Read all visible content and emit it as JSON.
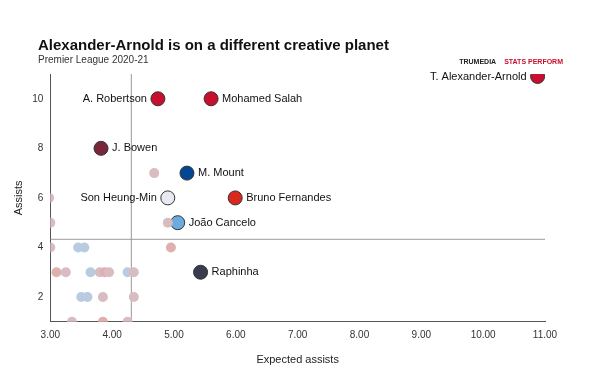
{
  "chart_data": {
    "type": "scatter",
    "title": "Alexander-Arnold is on a different creative planet",
    "subtitle": "Premier League 2020-21",
    "x_label": "Expected assists",
    "y_label": "Assists",
    "logo_text": [
      "TRUMEDIA",
      "STATS PERFORM"
    ],
    "x": [
      10.88,
      4.74,
      5.6,
      3.82,
      5.21,
      4.9,
      5.99,
      5.06,
      5.43,
      2.98,
      3.0,
      3.0,
      3.45,
      3.55,
      4.68,
      4.95,
      3.1,
      3.25,
      3.65,
      3.8,
      3.88,
      3.95,
      4.25,
      4.35,
      3.5,
      3.6,
      3.85,
      4.35,
      3.35,
      3.85,
      4.25,
      4.9
    ],
    "values": [
      10.9,
      10,
      10,
      8,
      7,
      6,
      6,
      5,
      3,
      6,
      5,
      4,
      4,
      4,
      7,
      4,
      3,
      3,
      3,
      3,
      3,
      3,
      3,
      3,
      2,
      2,
      2,
      2,
      1,
      1,
      1,
      5
    ],
    "point_labels": [
      "T. Alexander-Arnold",
      "A. Robertson",
      "Mohamed Salah",
      "J. Bowen",
      "M. Mount",
      "Son Heung-Min",
      "Bruno Fernandes",
      "João Cancelo",
      "Raphinha",
      null,
      null,
      null,
      null,
      null,
      null,
      null,
      null,
      null,
      null,
      null,
      null,
      null,
      null,
      null,
      null,
      null,
      null,
      null,
      null,
      null,
      null,
      null
    ],
    "colors": [
      "#c8102e",
      "#c8102e",
      "#c8102e",
      "#7a263a",
      "#034694",
      "#e8e8f0",
      "#da291c",
      "#6cabdd",
      "#3b3b4f",
      "#d9bcc2",
      "#d9bcc2",
      "#d9bcc2",
      "#b9cbe0",
      "#b9cbe0",
      "#d9bcc2",
      "#e0b0b0",
      "#e0b0b0",
      "#d9bcc2",
      "#b9cbe0",
      "#d9bcc2",
      "#e0b0b0",
      "#d9bcc2",
      "#b9cbe0",
      "#d9bcc2",
      "#b9cbe0",
      "#b9cbe0",
      "#d9bcc2",
      "#d9bcc2",
      "#d9bcc2",
      "#e0b0b0",
      "#d9bcc2",
      "#d9bcc2"
    ],
    "vlines": [
      4.31
    ],
    "hlines": [
      4.33
    ],
    "xlim": [
      3,
      11
    ],
    "xticks": [
      {
        "value": 3,
        "label": "3.00"
      },
      {
        "value": 4,
        "label": "4.00"
      },
      {
        "value": 5,
        "label": "5.00"
      },
      {
        "value": 6,
        "label": "6.00"
      },
      {
        "value": 7,
        "label": "7.00"
      },
      {
        "value": 8,
        "label": "8.00"
      },
      {
        "value": 9,
        "label": "9.00"
      },
      {
        "value": 10,
        "label": "10.00"
      },
      {
        "value": 11,
        "label": "11.00"
      }
    ],
    "ylim": [
      1,
      11
    ],
    "yticks": [
      2,
      4,
      6,
      8,
      10
    ],
    "grid": false
  }
}
